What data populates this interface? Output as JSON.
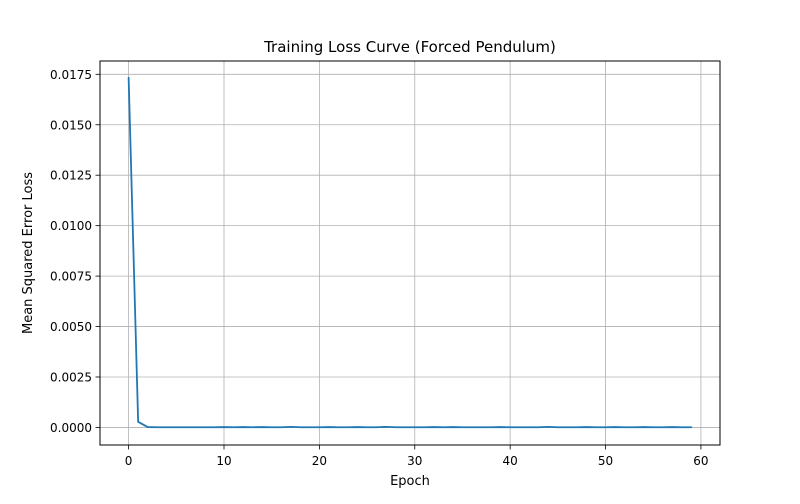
{
  "chart_data": {
    "type": "line",
    "title": "Training Loss Curve (Forced Pendulum)",
    "xlabel": "Epoch",
    "ylabel": "Mean Squared Error Loss",
    "xlim": [
      -3,
      62
    ],
    "ylim": [
      -0.00087,
      0.01816
    ],
    "grid": true,
    "xticks": [
      0,
      10,
      20,
      30,
      40,
      50,
      60
    ],
    "xtick_labels": [
      "0",
      "10",
      "20",
      "30",
      "40",
      "50",
      "60"
    ],
    "yticks": [
      0.0,
      0.0025,
      0.005,
      0.0075,
      0.01,
      0.0125,
      0.015,
      0.0175
    ],
    "ytick_labels": [
      "0.0000",
      "0.0025",
      "0.0050",
      "0.0075",
      "0.0100",
      "0.0125",
      "0.0150",
      "0.0175"
    ],
    "series": [
      {
        "color": "#1f77b4",
        "x": [
          0,
          1,
          2,
          3,
          4,
          5,
          6,
          7,
          8,
          9,
          10,
          11,
          12,
          13,
          14,
          15,
          16,
          17,
          18,
          19,
          20,
          21,
          22,
          23,
          24,
          25,
          26,
          27,
          28,
          29,
          30,
          31,
          32,
          33,
          34,
          35,
          36,
          37,
          38,
          39,
          40,
          41,
          42,
          43,
          44,
          45,
          46,
          47,
          48,
          49,
          50,
          51,
          52,
          53,
          54,
          55,
          56,
          57,
          58,
          59
        ],
        "y": [
          0.01733,
          0.00028,
          2e-05,
          1e-05,
          1e-05,
          1e-05,
          1e-05,
          1e-05,
          1e-05,
          1e-05,
          2e-05,
          1e-05,
          2e-05,
          1e-05,
          2e-05,
          1e-05,
          1e-05,
          3e-05,
          1e-05,
          1e-05,
          1e-05,
          2e-05,
          1e-05,
          1e-05,
          2e-05,
          1e-05,
          1e-05,
          3e-05,
          1e-05,
          1e-05,
          1e-05,
          1e-05,
          2e-05,
          1e-05,
          2e-05,
          1e-05,
          1e-05,
          1e-05,
          1e-05,
          2e-05,
          1e-05,
          1e-05,
          1e-05,
          1e-05,
          3e-05,
          1e-05,
          1e-05,
          1e-05,
          2e-05,
          1e-05,
          1e-05,
          2e-05,
          1e-05,
          1e-05,
          2e-05,
          1e-05,
          1e-05,
          2e-05,
          1e-05,
          1e-05
        ]
      }
    ]
  }
}
